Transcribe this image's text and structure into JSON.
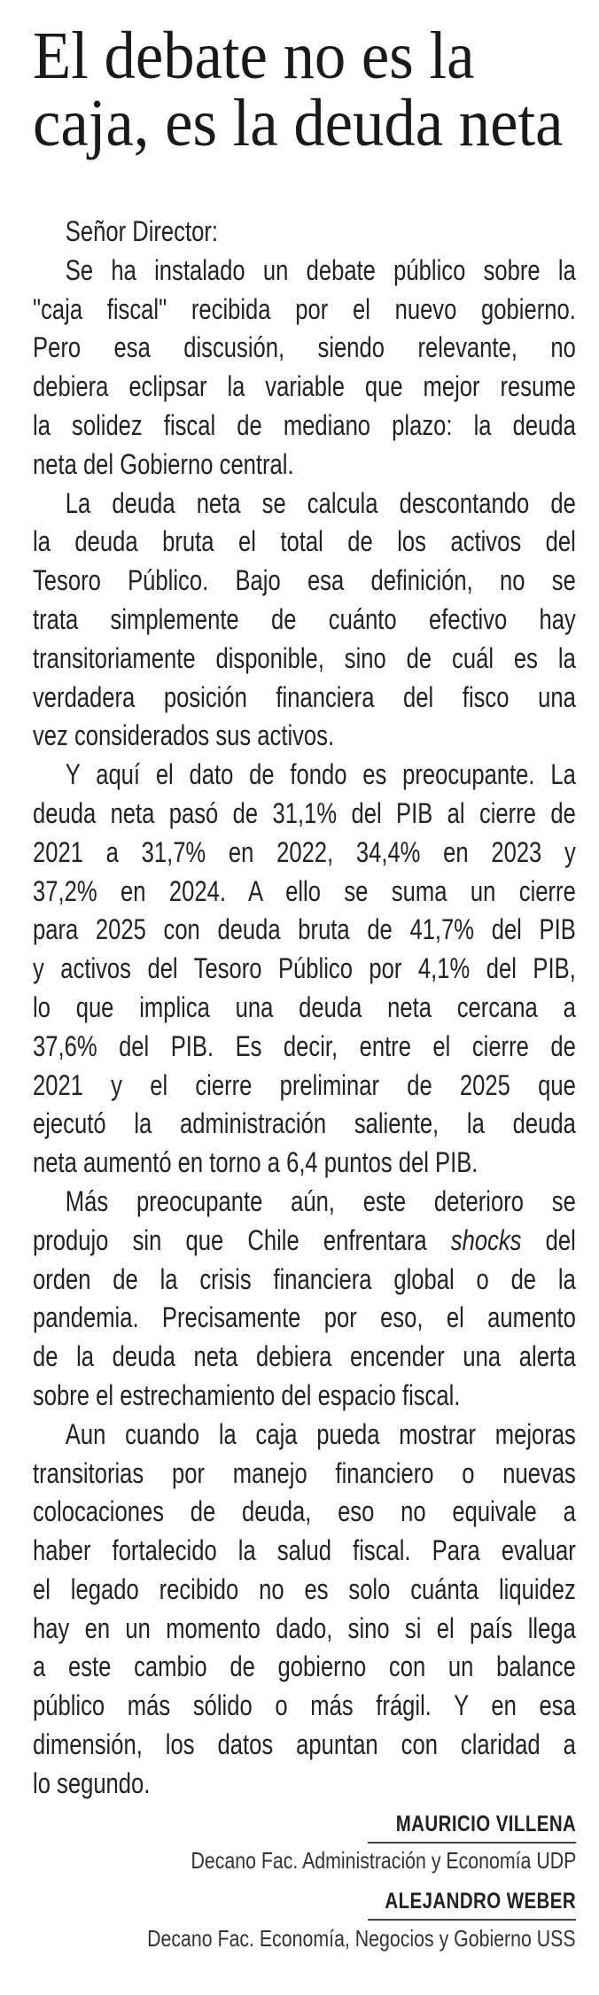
{
  "headline": {
    "lines": [
      "El debate no es la",
      "caja, es la deuda neta"
    ]
  },
  "body": {
    "paragraphs": [
      {
        "lines": [
          [
            {
              "text": "Señor Director:"
            }
          ]
        ]
      },
      {
        "lines": [
          [
            {
              "text": "Se ha instalado un debate público sobre la"
            }
          ],
          [
            {
              "text": "\"caja fiscal\" recibida por el nuevo gobierno."
            }
          ],
          [
            {
              "text": "Pero esa discusión, siendo relevante, no"
            }
          ],
          [
            {
              "text": "debiera eclipsar la variable que mejor resume"
            }
          ],
          [
            {
              "text": "la solidez fiscal de mediano plazo: la deuda"
            }
          ],
          [
            {
              "text": "neta del Gobierno central."
            }
          ]
        ]
      },
      {
        "lines": [
          [
            {
              "text": "La deuda neta se calcula descontando de"
            }
          ],
          [
            {
              "text": "la deuda bruta el total de los activos del"
            }
          ],
          [
            {
              "text": "Tesoro Público. Bajo esa definición, no se"
            }
          ],
          [
            {
              "text": "trata simplemente de cuánto efectivo hay"
            }
          ],
          [
            {
              "text": "transitoriamente disponible, sino de cuál es la"
            }
          ],
          [
            {
              "text": "verdadera posición financiera del fisco una"
            }
          ],
          [
            {
              "text": "vez considerados sus activos."
            }
          ]
        ]
      },
      {
        "lines": [
          [
            {
              "text": "Y aquí el dato de fondo es preocupante. La"
            }
          ],
          [
            {
              "text": "deuda neta pasó de 31,1% del PIB al cierre de"
            }
          ],
          [
            {
              "text": "2021 a 31,7% en 2022, 34,4% en 2023 y"
            }
          ],
          [
            {
              "text": "37,2% en 2024. A ello se suma un cierre"
            }
          ],
          [
            {
              "text": "para 2025 con deuda bruta de 41,7% del PIB"
            }
          ],
          [
            {
              "text": "y activos del Tesoro Público por 4,1% del PIB,"
            }
          ],
          [
            {
              "text": "lo que implica una deuda neta cercana a"
            }
          ],
          [
            {
              "text": "37,6% del PIB. Es decir, entre el cierre de"
            }
          ],
          [
            {
              "text": "2021 y el cierre preliminar de 2025 que"
            }
          ],
          [
            {
              "text": "ejecutó la administración saliente, la deuda"
            }
          ],
          [
            {
              "text": "neta aumentó en torno a 6,4 puntos del PIB."
            }
          ]
        ]
      },
      {
        "lines": [
          [
            {
              "text": "Más preocupante aún, este deterioro se"
            }
          ],
          [
            {
              "text": "produjo sin que Chile enfrentara "
            },
            {
              "text": "shocks",
              "italic": true
            },
            {
              "text": " del"
            }
          ],
          [
            {
              "text": "orden de la crisis financiera global o de la"
            }
          ],
          [
            {
              "text": "pandemia. Precisamente por eso, el aumento"
            }
          ],
          [
            {
              "text": "de la deuda neta debiera encender una alerta"
            }
          ],
          [
            {
              "text": "sobre el estrechamiento del espacio fiscal."
            }
          ]
        ]
      },
      {
        "lines": [
          [
            {
              "text": "Aun cuando la caja pueda mostrar mejoras"
            }
          ],
          [
            {
              "text": "transitorias por manejo financiero o nuevas"
            }
          ],
          [
            {
              "text": "colocaciones de deuda, eso no equivale a"
            }
          ],
          [
            {
              "text": "haber fortalecido la salud fiscal. Para evaluar"
            }
          ],
          [
            {
              "text": "el legado recibido no es solo cuánta liquidez"
            }
          ],
          [
            {
              "text": "hay en un momento dado, sino si el país llega"
            }
          ],
          [
            {
              "text": "a este cambio de gobierno con un balance"
            }
          ],
          [
            {
              "text": "público más sólido o más frágil. Y en esa"
            }
          ],
          [
            {
              "text": "dimensión, los datos apuntan con claridad a"
            }
          ],
          [
            {
              "text": "lo segundo."
            }
          ]
        ]
      }
    ]
  },
  "signatures": [
    {
      "name": "MAURICIO VILLENA",
      "role": "Decano Fac. Administración y Economía UDP"
    },
    {
      "name": "ALEJANDRO WEBER",
      "role": "Decano Fac. Economía, Negocios y Gobierno USS"
    }
  ]
}
